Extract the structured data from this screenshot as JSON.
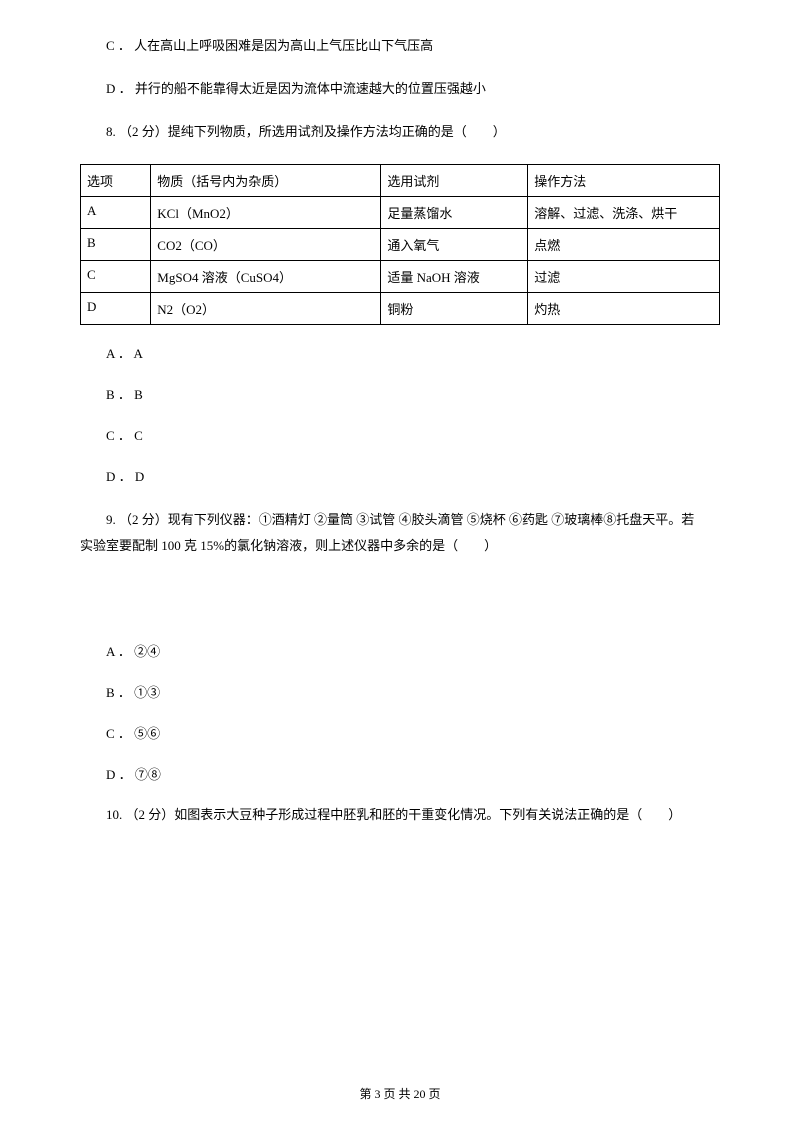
{
  "prev": {
    "optC": "C ． 人在高山上呼吸困难是因为高山上气压比山下气压高",
    "optD": "D ． 并行的船不能靠得太近是因为流体中流速越大的位置压强越小"
  },
  "q8": {
    "stem": "8.   （2 分）提纯下列物质，所选用试剂及操作方法均正确的是（　　）",
    "header": [
      "选项",
      "物质（括号内为杂质）",
      "选用试剂",
      "操作方法"
    ],
    "rows": [
      [
        "A",
        "KCl（MnO2）",
        "足量蒸馏水",
        "溶解、过滤、洗涤、烘干"
      ],
      [
        "B",
        "CO2（CO）",
        "通入氧气",
        "点燃"
      ],
      [
        "C",
        "MgSO4 溶液（CuSO4）",
        "适量 NaOH 溶液",
        "过滤"
      ],
      [
        "D",
        "N2（O2）",
        "铜粉",
        "灼热"
      ]
    ],
    "opts": [
      "A ． A",
      "B ． B",
      "C ． C",
      "D ． D"
    ]
  },
  "q9": {
    "stem1": "9.   （2 分）现有下列仪器：①酒精灯  ②量筒  ③试管  ④胶头滴管  ⑤烧杯  ⑥药匙  ⑦玻璃棒⑧托盘天平。若",
    "stem2": "实验室要配制 100 克 15%的氯化钠溶液，则上述仪器中多余的是（　　）",
    "opts": [
      "A ． ②④",
      "B ． ①③",
      "C ． ⑤⑥",
      "D ． ⑦⑧"
    ]
  },
  "q10": {
    "stem": "10.   （2 分）如图表示大豆种子形成过程中胚乳和胚的干重变化情况。下列有关说法正确的是（　　）"
  },
  "footer": "第  3  页  共  20  页"
}
